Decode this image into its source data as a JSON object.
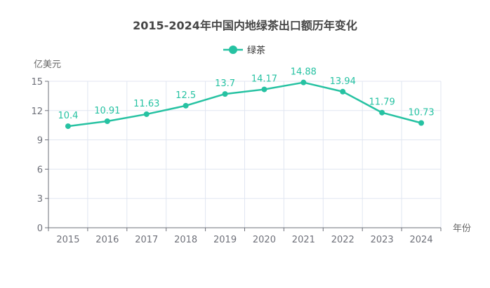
{
  "chart_data": {
    "type": "line",
    "title": "2015-2024年中国内地绿茶出口额历年变化",
    "xlabel": "年份",
    "ylabel": "亿美元",
    "categories": [
      "2015",
      "2016",
      "2017",
      "2018",
      "2019",
      "2020",
      "2021",
      "2022",
      "2023",
      "2024"
    ],
    "series": [
      {
        "name": "绿茶",
        "values": [
          10.4,
          10.91,
          11.63,
          12.5,
          13.7,
          14.17,
          14.88,
          13.94,
          11.79,
          10.73
        ],
        "color": "#26c2a2"
      }
    ],
    "ylim": [
      0,
      15
    ],
    "yticks": [
      0,
      3,
      6,
      9,
      12,
      15
    ],
    "grid": true,
    "legend": "top-center",
    "data_labels": true
  }
}
